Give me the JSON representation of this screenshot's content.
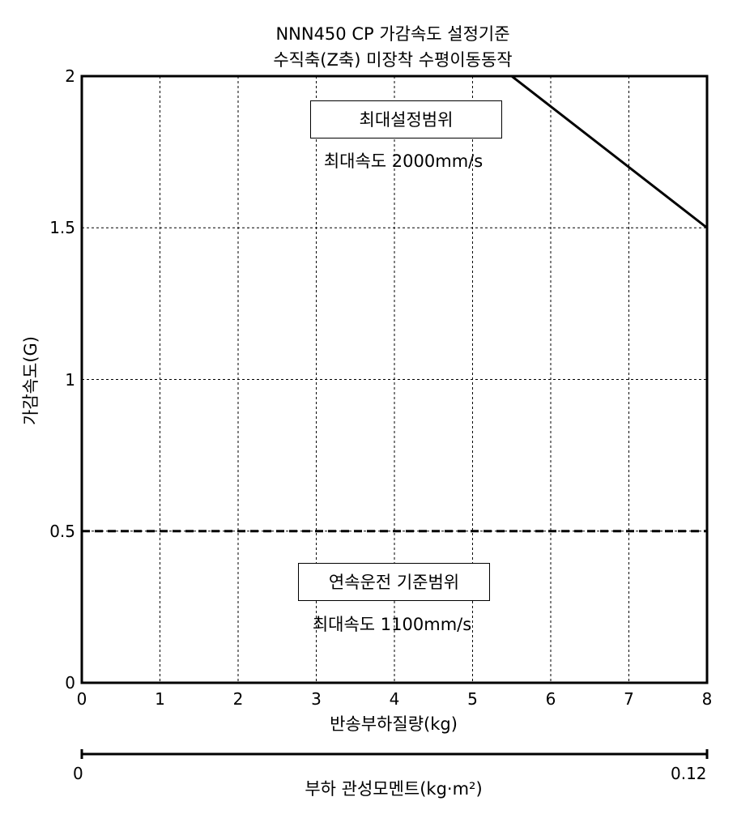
{
  "chart_data": {
    "type": "line",
    "title": "NNN450 CP 가감속도 설정기준",
    "subtitle": "수직축(Z축) 미장착 수평이동동작",
    "xlabel": "반송부하질량(kg)",
    "ylabel": "가감속도(G)",
    "xlim": [
      0,
      8
    ],
    "ylim": [
      0,
      2
    ],
    "x_ticks": [
      "0",
      "1",
      "2",
      "3",
      "4",
      "5",
      "6",
      "7",
      "8"
    ],
    "y_ticks": [
      "0",
      "0.5",
      "1",
      "1.5",
      "2"
    ],
    "x_tick_values": [
      0,
      1,
      2,
      3,
      4,
      5,
      6,
      7,
      8
    ],
    "y_tick_values": [
      0,
      0.5,
      1,
      1.5,
      2
    ],
    "grid": true,
    "series": [
      {
        "style": "solid",
        "x": [
          5.5,
          8
        ],
        "y": [
          2,
          1.5
        ]
      },
      {
        "style": "dashed",
        "x": [
          0,
          8
        ],
        "y": [
          0.5,
          0.5
        ]
      }
    ],
    "annotations": [
      {
        "label": "최대설정범위",
        "text": "최대속도 2000mm/s"
      },
      {
        "label": "연속운전 기준범위",
        "text": "최대속도 1100mm/s"
      }
    ],
    "secondary_axis": {
      "label": "부하 관성모멘트(kg·m²)",
      "min_label": "0",
      "max_label": "0.12"
    }
  }
}
